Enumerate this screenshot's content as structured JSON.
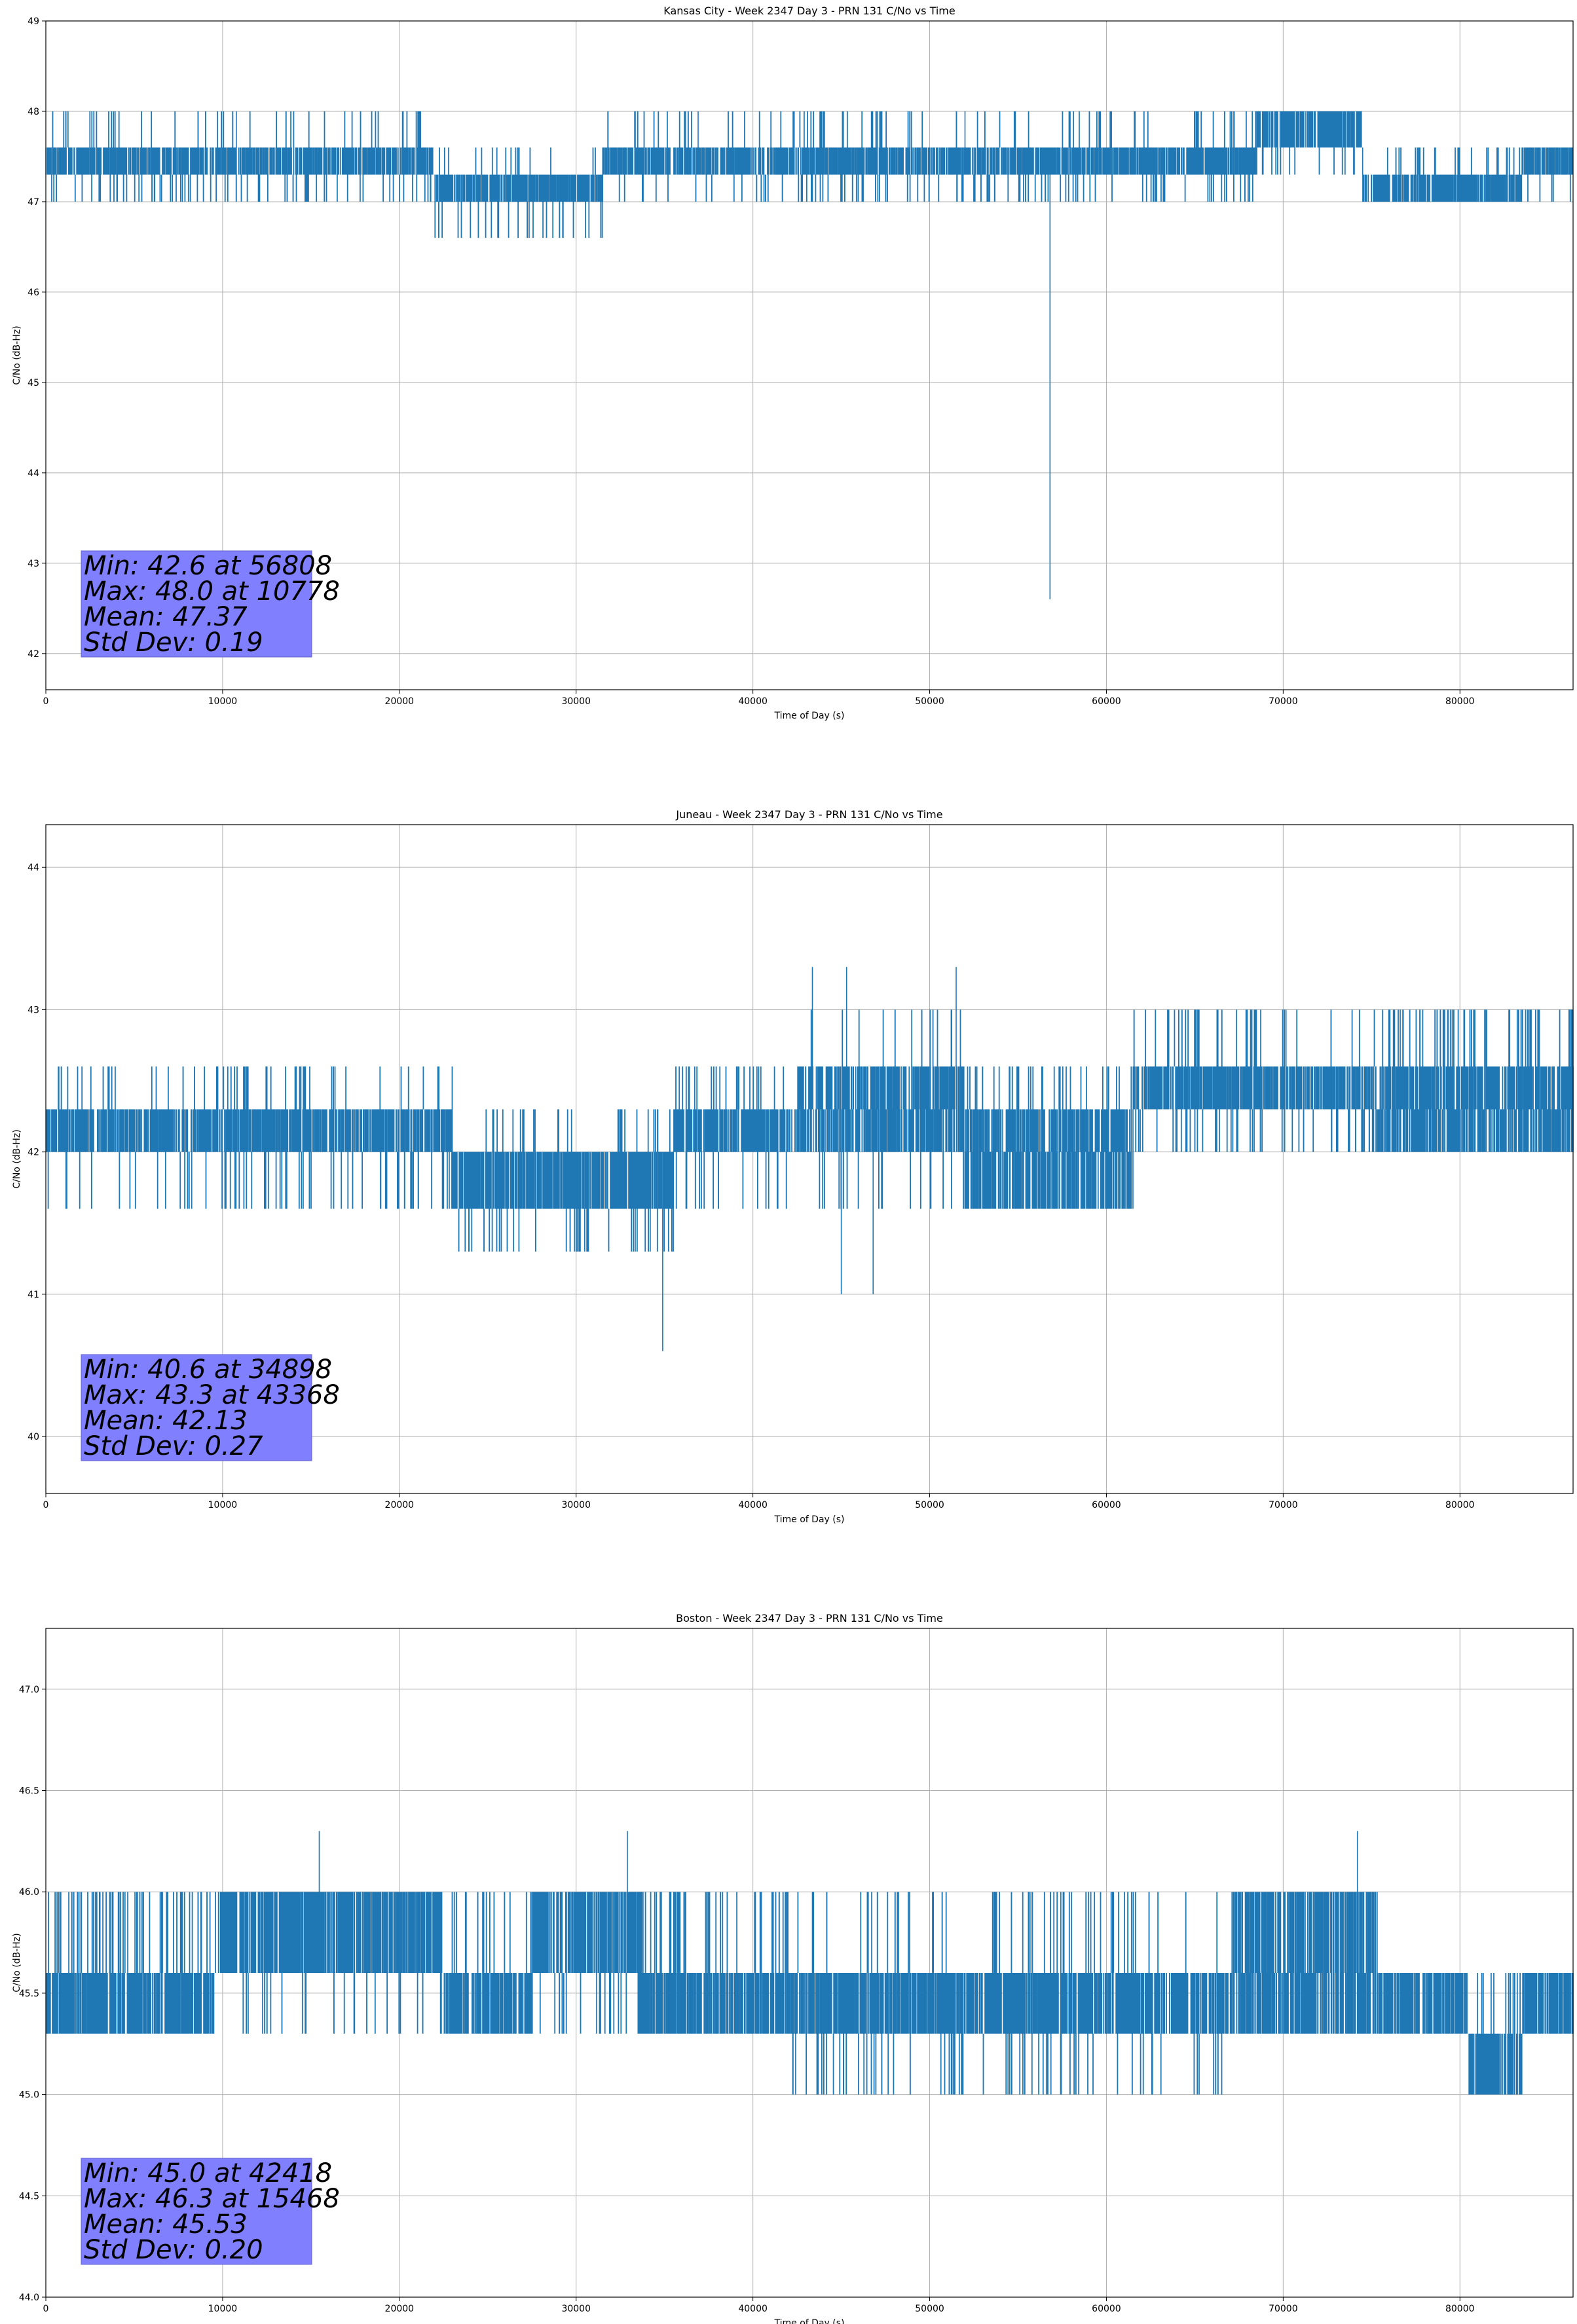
{
  "colors": {
    "series": "#1f77b4",
    "stats_box": "#8080ff",
    "grid": "#b0b0b0"
  },
  "chart_data": [
    {
      "type": "line",
      "title": "Kansas City - Week 2347 Day 3 - PRN 131 C/No vs Time",
      "xlabel": "Time of Day (s)",
      "ylabel": "C/No (dB-Hz)",
      "xlim": [
        0,
        86400
      ],
      "ylim": [
        41.6,
        49.0
      ],
      "xticks": [
        0,
        10000,
        20000,
        30000,
        40000,
        50000,
        60000,
        70000,
        80000
      ],
      "xtick_labels": [
        "0",
        "10000",
        "20000",
        "30000",
        "40000",
        "50000",
        "60000",
        "70000",
        "80000"
      ],
      "yticks": [
        42,
        43,
        44,
        45,
        46,
        47,
        48,
        49
      ],
      "ytick_labels": [
        "42",
        "43",
        "44",
        "45",
        "46",
        "47",
        "48",
        "49"
      ],
      "grid": true,
      "series": [
        {
          "name": "PRN 131",
          "segments": [
            {
              "start": 0,
              "end": 22000,
              "levels": [
                47.3,
                47.6
              ],
              "dips": [
                47.0
              ],
              "spikes": [
                48.0
              ]
            },
            {
              "start": 22000,
              "end": 31500,
              "levels": [
                47.0,
                47.3
              ],
              "dips": [
                46.6
              ],
              "spikes": [
                47.6
              ]
            },
            {
              "start": 31500,
              "end": 55000,
              "levels": [
                47.3,
                47.6
              ],
              "dips": [
                47.0
              ],
              "spikes": [
                48.0
              ]
            },
            {
              "start": 55000,
              "end": 68500,
              "levels": [
                47.3,
                47.6
              ],
              "dips": [
                47.0
              ],
              "spikes": [
                48.0
              ]
            },
            {
              "start": 68500,
              "end": 74500,
              "levels": [
                47.6,
                48.0
              ],
              "dips": [
                47.3
              ],
              "spikes": []
            },
            {
              "start": 74500,
              "end": 83500,
              "levels": [
                47.0,
                47.3
              ],
              "dips": [],
              "spikes": [
                47.6
              ]
            },
            {
              "start": 83500,
              "end": 86400,
              "levels": [
                47.3,
                47.6
              ],
              "dips": [
                47.0
              ],
              "spikes": []
            }
          ],
          "extremes": [
            [
              10778,
              48.0
            ],
            [
              56808,
              42.6
            ],
            [
              36900,
              48.0
            ],
            [
              52000,
              48.0
            ]
          ]
        }
      ],
      "stats": {
        "min": "Min: 42.6 at 56808",
        "max": "Max: 48.0 at 10778",
        "mean": "Mean: 47.37",
        "std": "Std Dev: 0.19"
      },
      "stats_location": "lower-left"
    },
    {
      "type": "line",
      "title": "Juneau - Week 2347 Day 3 - PRN 131 C/No vs Time",
      "xlabel": "Time of Day (s)",
      "ylabel": "C/No (dB-Hz)",
      "xlim": [
        0,
        86400
      ],
      "ylim": [
        39.6,
        44.3
      ],
      "xticks": [
        0,
        10000,
        20000,
        30000,
        40000,
        50000,
        60000,
        70000,
        80000
      ],
      "xtick_labels": [
        "0",
        "10000",
        "20000",
        "30000",
        "40000",
        "50000",
        "60000",
        "70000",
        "80000"
      ],
      "yticks": [
        40,
        41,
        42,
        43,
        44
      ],
      "ytick_labels": [
        "40",
        "41",
        "42",
        "43",
        "44"
      ],
      "grid": true,
      "series": [
        {
          "name": "PRN 131",
          "segments": [
            {
              "start": 0,
              "end": 23000,
              "levels": [
                42.0,
                42.3
              ],
              "dips": [
                41.6
              ],
              "spikes": [
                42.6
              ]
            },
            {
              "start": 23000,
              "end": 35500,
              "levels": [
                41.6,
                42.0
              ],
              "dips": [
                41.3
              ],
              "spikes": [
                42.3
              ]
            },
            {
              "start": 35500,
              "end": 42500,
              "levels": [
                42.0,
                42.3
              ],
              "dips": [
                41.6
              ],
              "spikes": [
                42.6
              ]
            },
            {
              "start": 42500,
              "end": 52000,
              "levels": [
                42.0,
                42.3,
                42.6
              ],
              "dips": [
                41.6
              ],
              "spikes": [
                43.0
              ]
            },
            {
              "start": 52000,
              "end": 61500,
              "levels": [
                41.6,
                42.0,
                42.3
              ],
              "dips": [],
              "spikes": [
                42.6
              ]
            },
            {
              "start": 61500,
              "end": 75000,
              "levels": [
                42.3,
                42.6
              ],
              "dips": [
                42.0
              ],
              "spikes": [
                43.0
              ]
            },
            {
              "start": 75000,
              "end": 86400,
              "levels": [
                42.0,
                42.3,
                42.6
              ],
              "dips": [],
              "spikes": [
                43.0
              ]
            }
          ],
          "extremes": [
            [
              34898,
              40.6
            ],
            [
              43368,
              43.3
            ],
            [
              45300,
              43.3
            ],
            [
              51500,
              43.3
            ],
            [
              45000,
              41.0
            ],
            [
              46800,
              41.0
            ]
          ]
        }
      ],
      "stats": {
        "min": "Min: 40.6 at 34898",
        "max": "Max: 43.3 at 43368",
        "mean": "Mean: 42.13",
        "std": "Std Dev: 0.27"
      },
      "stats_location": "lower-left"
    },
    {
      "type": "line",
      "title": "Boston - Week 2347 Day 3 - PRN 131 C/No vs Time",
      "xlabel": "Time of Day (s)",
      "ylabel": "C/No (dB-Hz)",
      "xlim": [
        0,
        86400
      ],
      "ylim": [
        44.0,
        47.3
      ],
      "xticks": [
        0,
        10000,
        20000,
        30000,
        40000,
        50000,
        60000,
        70000,
        80000
      ],
      "xtick_labels": [
        "0",
        "10000",
        "20000",
        "30000",
        "40000",
        "50000",
        "60000",
        "70000",
        "80000"
      ],
      "yticks": [
        44.0,
        44.5,
        45.0,
        45.5,
        46.0,
        46.5,
        47.0
      ],
      "ytick_labels": [
        "44.0",
        "44.5",
        "45.0",
        "45.5",
        "46.0",
        "46.5",
        "47.0"
      ],
      "grid": true,
      "series": [
        {
          "name": "PRN 131",
          "segments": [
            {
              "start": 0,
              "end": 9500,
              "levels": [
                45.3,
                45.6
              ],
              "dips": [],
              "spikes": [
                46.0
              ]
            },
            {
              "start": 9500,
              "end": 22500,
              "levels": [
                45.6,
                46.0
              ],
              "dips": [
                45.3
              ],
              "spikes": []
            },
            {
              "start": 22500,
              "end": 27500,
              "levels": [
                45.3,
                45.6
              ],
              "dips": [],
              "spikes": [
                46.0
              ]
            },
            {
              "start": 27500,
              "end": 33500,
              "levels": [
                45.6,
                46.0
              ],
              "dips": [
                45.3
              ],
              "spikes": []
            },
            {
              "start": 33500,
              "end": 42000,
              "levels": [
                45.3,
                45.6
              ],
              "dips": [],
              "spikes": [
                46.0
              ]
            },
            {
              "start": 42000,
              "end": 67000,
              "levels": [
                45.3,
                45.6
              ],
              "dips": [
                45.0
              ],
              "spikes": [
                46.0
              ]
            },
            {
              "start": 67000,
              "end": 75500,
              "levels": [
                45.3,
                45.6,
                46.0
              ],
              "dips": [],
              "spikes": []
            },
            {
              "start": 75500,
              "end": 80500,
              "levels": [
                45.3,
                45.6
              ],
              "dips": [],
              "spikes": []
            },
            {
              "start": 80500,
              "end": 83500,
              "levels": [
                45.0,
                45.3
              ],
              "dips": [],
              "spikes": [
                45.6
              ]
            },
            {
              "start": 83500,
              "end": 86400,
              "levels": [
                45.3,
                45.6
              ],
              "dips": [],
              "spikes": []
            }
          ],
          "extremes": [
            [
              15468,
              46.3
            ],
            [
              32900,
              46.3
            ],
            [
              74200,
              46.3
            ],
            [
              42418,
              45.0
            ]
          ]
        }
      ],
      "stats": {
        "min": "Min: 45.0 at 42418",
        "max": "Max: 46.3 at 15468",
        "mean": "Mean: 45.53",
        "std": "Std Dev: 0.20"
      },
      "stats_location": "lower-left"
    }
  ]
}
